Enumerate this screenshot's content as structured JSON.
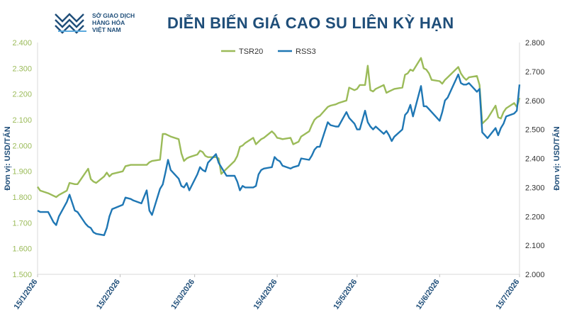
{
  "header": {
    "logo_lines": [
      "SỞ GIAO DỊCH",
      "HÀNG HÓA",
      "VIỆT NAM"
    ],
    "title": "DIỄN BIẾN GIÁ CAO SU LIÊN KỲ HẠN"
  },
  "chart_data": {
    "type": "line",
    "title": "DIỄN BIẾN GIÁ CAO SU LIÊN KỲ HẠN",
    "ylabel_left": "Đơn vị: USD/TẤN",
    "ylabel_right": "Đơn vị: USD/TẤN",
    "x_tick_labels": [
      "15/1/2026",
      "15/2/2026",
      "15/3/2026",
      "15/4/2026",
      "15/5/2026",
      "15/6/2026",
      "15/7/2026"
    ],
    "x_range": [
      "2026-01-15",
      "2026-07-15"
    ],
    "y_left_ticks": [
      "1.500",
      "1.600",
      "1.700",
      "1.800",
      "1.900",
      "2.000",
      "2.100",
      "2.200",
      "2.300",
      "2.400"
    ],
    "y_left_range": [
      1500,
      2400
    ],
    "y_right_ticks": [
      "2.000",
      "2.100",
      "2.200",
      "2.300",
      "2.400",
      "2.500",
      "2.600",
      "2.700",
      "2.800"
    ],
    "y_right_range": [
      2000,
      2800
    ],
    "grid": false,
    "legend_position": "top-center",
    "series": [
      {
        "name": "TSR20",
        "axis": "left",
        "color": "#9bbb59",
        "points": [
          [
            "2026-01-15",
            1840
          ],
          [
            "2026-01-16",
            1825
          ],
          [
            "2026-01-19",
            1815
          ],
          [
            "2026-01-21",
            1805
          ],
          [
            "2026-01-22",
            1800
          ],
          [
            "2026-01-23",
            1808
          ],
          [
            "2026-01-26",
            1825
          ],
          [
            "2026-01-27",
            1855
          ],
          [
            "2026-01-29",
            1850
          ],
          [
            "2026-01-30",
            1850
          ],
          [
            "2026-02-02",
            1895
          ],
          [
            "2026-02-03",
            1910
          ],
          [
            "2026-02-04",
            1870
          ],
          [
            "2026-02-05",
            1860
          ],
          [
            "2026-02-06",
            1855
          ],
          [
            "2026-02-09",
            1880
          ],
          [
            "2026-02-10",
            1895
          ],
          [
            "2026-02-11",
            1880
          ],
          [
            "2026-02-12",
            1890
          ],
          [
            "2026-02-16",
            1900
          ],
          [
            "2026-02-17",
            1920
          ],
          [
            "2026-02-19",
            1925
          ],
          [
            "2026-02-20",
            1925
          ],
          [
            "2026-02-23",
            1925
          ],
          [
            "2026-02-25",
            1925
          ],
          [
            "2026-02-26",
            1935
          ],
          [
            "2026-02-27",
            1940
          ],
          [
            "2026-03-02",
            1945
          ],
          [
            "2026-03-03",
            2045
          ],
          [
            "2026-03-04",
            2045
          ],
          [
            "2026-03-05",
            2040
          ],
          [
            "2026-03-06",
            2035
          ],
          [
            "2026-03-09",
            2025
          ],
          [
            "2026-03-10",
            1970
          ],
          [
            "2026-03-11",
            1940
          ],
          [
            "2026-03-12",
            1950
          ],
          [
            "2026-03-13",
            1955
          ],
          [
            "2026-03-16",
            1965
          ],
          [
            "2026-03-17",
            1980
          ],
          [
            "2026-03-18",
            1975
          ],
          [
            "2026-03-19",
            1960
          ],
          [
            "2026-03-20",
            1955
          ],
          [
            "2026-03-23",
            1955
          ],
          [
            "2026-03-24",
            1950
          ],
          [
            "2026-03-25",
            1890
          ],
          [
            "2026-03-27",
            1910
          ],
          [
            "2026-03-30",
            1940
          ],
          [
            "2026-03-31",
            1960
          ],
          [
            "2026-04-01",
            1995
          ],
          [
            "2026-04-02",
            2000
          ],
          [
            "2026-04-03",
            2010
          ],
          [
            "2026-04-06",
            2030
          ],
          [
            "2026-04-07",
            2005
          ],
          [
            "2026-04-08",
            2015
          ],
          [
            "2026-04-09",
            2025
          ],
          [
            "2026-04-10",
            2030
          ],
          [
            "2026-04-13",
            2055
          ],
          [
            "2026-04-14",
            2045
          ],
          [
            "2026-04-15",
            2030
          ],
          [
            "2026-04-16",
            2028
          ],
          [
            "2026-04-17",
            2025
          ],
          [
            "2026-04-20",
            2030
          ],
          [
            "2026-04-21",
            2005
          ],
          [
            "2026-04-23",
            2015
          ],
          [
            "2026-04-24",
            2035
          ],
          [
            "2026-04-27",
            2055
          ],
          [
            "2026-04-28",
            2080
          ],
          [
            "2026-04-29",
            2100
          ],
          [
            "2026-04-30",
            2110
          ],
          [
            "2026-05-01",
            2115
          ],
          [
            "2026-05-04",
            2150
          ],
          [
            "2026-05-05",
            2155
          ],
          [
            "2026-05-07",
            2160
          ],
          [
            "2026-05-08",
            2165
          ],
          [
            "2026-05-11",
            2175
          ],
          [
            "2026-05-12",
            2225
          ],
          [
            "2026-05-14",
            2215
          ],
          [
            "2026-05-15",
            2220
          ],
          [
            "2026-05-16",
            2235
          ],
          [
            "2026-05-18",
            2235
          ],
          [
            "2026-05-19",
            2310
          ],
          [
            "2026-05-20",
            2215
          ],
          [
            "2026-05-21",
            2210
          ],
          [
            "2026-05-22",
            2220
          ],
          [
            "2026-05-25",
            2235
          ],
          [
            "2026-05-26",
            2205
          ],
          [
            "2026-05-27",
            2210
          ],
          [
            "2026-05-28",
            2215
          ],
          [
            "2026-05-29",
            2220
          ],
          [
            "2026-06-01",
            2225
          ],
          [
            "2026-06-02",
            2275
          ],
          [
            "2026-06-03",
            2280
          ],
          [
            "2026-06-04",
            2295
          ],
          [
            "2026-06-05",
            2290
          ],
          [
            "2026-06-08",
            2340
          ],
          [
            "2026-06-09",
            2300
          ],
          [
            "2026-06-10",
            2295
          ],
          [
            "2026-06-11",
            2280
          ],
          [
            "2026-06-12",
            2255
          ],
          [
            "2026-06-15",
            2250
          ],
          [
            "2026-06-16",
            2240
          ],
          [
            "2026-06-17",
            2255
          ],
          [
            "2026-06-18",
            2265
          ],
          [
            "2026-06-22",
            2305
          ],
          [
            "2026-06-23",
            2280
          ],
          [
            "2026-06-24",
            2265
          ],
          [
            "2026-06-25",
            2255
          ],
          [
            "2026-06-26",
            2265
          ],
          [
            "2026-06-29",
            2270
          ],
          [
            "2026-06-30",
            2235
          ],
          [
            "2026-07-01",
            2085
          ],
          [
            "2026-07-02",
            2095
          ],
          [
            "2026-07-03",
            2105
          ],
          [
            "2026-07-06",
            2155
          ],
          [
            "2026-07-07",
            2110
          ],
          [
            "2026-07-08",
            2105
          ],
          [
            "2026-07-09",
            2130
          ],
          [
            "2026-07-10",
            2145
          ],
          [
            "2026-07-13",
            2165
          ],
          [
            "2026-07-14",
            2150
          ],
          [
            "2026-07-15",
            2185
          ]
        ]
      },
      {
        "name": "RSS3",
        "axis": "right",
        "color": "#1f77b4",
        "points": [
          [
            "2026-01-15",
            2220
          ],
          [
            "2026-01-16",
            2215
          ],
          [
            "2026-01-19",
            2215
          ],
          [
            "2026-01-21",
            2180
          ],
          [
            "2026-01-22",
            2170
          ],
          [
            "2026-01-23",
            2200
          ],
          [
            "2026-01-26",
            2250
          ],
          [
            "2026-01-27",
            2275
          ],
          [
            "2026-01-29",
            2220
          ],
          [
            "2026-01-30",
            2215
          ],
          [
            "2026-02-02",
            2175
          ],
          [
            "2026-02-03",
            2165
          ],
          [
            "2026-02-04",
            2160
          ],
          [
            "2026-02-05",
            2145
          ],
          [
            "2026-02-06",
            2140
          ],
          [
            "2026-02-09",
            2135
          ],
          [
            "2026-02-10",
            2160
          ],
          [
            "2026-02-11",
            2200
          ],
          [
            "2026-02-12",
            2225
          ],
          [
            "2026-02-16",
            2240
          ],
          [
            "2026-02-17",
            2265
          ],
          [
            "2026-02-19",
            2260
          ],
          [
            "2026-02-20",
            2255
          ],
          [
            "2026-02-23",
            2245
          ],
          [
            "2026-02-25",
            2290
          ],
          [
            "2026-02-26",
            2220
          ],
          [
            "2026-02-27",
            2205
          ],
          [
            "2026-03-02",
            2295
          ],
          [
            "2026-03-03",
            2310
          ],
          [
            "2026-03-04",
            2350
          ],
          [
            "2026-03-05",
            2395
          ],
          [
            "2026-03-06",
            2360
          ],
          [
            "2026-03-09",
            2330
          ],
          [
            "2026-03-10",
            2305
          ],
          [
            "2026-03-11",
            2300
          ],
          [
            "2026-03-12",
            2315
          ],
          [
            "2026-03-13",
            2290
          ],
          [
            "2026-03-16",
            2345
          ],
          [
            "2026-03-17",
            2370
          ],
          [
            "2026-03-18",
            2360
          ],
          [
            "2026-03-19",
            2355
          ],
          [
            "2026-03-20",
            2385
          ],
          [
            "2026-03-23",
            2415
          ],
          [
            "2026-03-24",
            2385
          ],
          [
            "2026-03-25",
            2370
          ],
          [
            "2026-03-27",
            2340
          ],
          [
            "2026-03-30",
            2340
          ],
          [
            "2026-03-31",
            2320
          ],
          [
            "2026-04-01",
            2290
          ],
          [
            "2026-04-02",
            2305
          ],
          [
            "2026-04-03",
            2300
          ],
          [
            "2026-04-06",
            2300
          ],
          [
            "2026-04-07",
            2305
          ],
          [
            "2026-04-08",
            2345
          ],
          [
            "2026-04-09",
            2360
          ],
          [
            "2026-04-10",
            2365
          ],
          [
            "2026-04-13",
            2370
          ],
          [
            "2026-04-14",
            2405
          ],
          [
            "2026-04-15",
            2395
          ],
          [
            "2026-04-16",
            2390
          ],
          [
            "2026-04-17",
            2375
          ],
          [
            "2026-04-20",
            2365
          ],
          [
            "2026-04-21",
            2370
          ],
          [
            "2026-04-23",
            2375
          ],
          [
            "2026-04-24",
            2400
          ],
          [
            "2026-04-27",
            2395
          ],
          [
            "2026-04-28",
            2410
          ],
          [
            "2026-04-29",
            2430
          ],
          [
            "2026-04-30",
            2440
          ],
          [
            "2026-05-01",
            2440
          ],
          [
            "2026-05-04",
            2525
          ],
          [
            "2026-05-05",
            2515
          ],
          [
            "2026-05-07",
            2510
          ],
          [
            "2026-05-08",
            2510
          ],
          [
            "2026-05-11",
            2560
          ],
          [
            "2026-05-12",
            2540
          ],
          [
            "2026-05-14",
            2520
          ],
          [
            "2026-05-15",
            2500
          ],
          [
            "2026-05-16",
            2500
          ],
          [
            "2026-05-18",
            2565
          ],
          [
            "2026-05-19",
            2525
          ],
          [
            "2026-05-20",
            2510
          ],
          [
            "2026-05-21",
            2500
          ],
          [
            "2026-05-22",
            2510
          ],
          [
            "2026-05-25",
            2485
          ],
          [
            "2026-05-26",
            2495
          ],
          [
            "2026-05-27",
            2480
          ],
          [
            "2026-05-28",
            2460
          ],
          [
            "2026-05-29",
            2475
          ],
          [
            "2026-06-01",
            2500
          ],
          [
            "2026-06-02",
            2550
          ],
          [
            "2026-06-03",
            2560
          ],
          [
            "2026-06-04",
            2585
          ],
          [
            "2026-06-05",
            2545
          ],
          [
            "2026-06-08",
            2650
          ],
          [
            "2026-06-09",
            2580
          ],
          [
            "2026-06-10",
            2580
          ],
          [
            "2026-06-11",
            2570
          ],
          [
            "2026-06-12",
            2560
          ],
          [
            "2026-06-15",
            2530
          ],
          [
            "2026-06-16",
            2560
          ],
          [
            "2026-06-17",
            2600
          ],
          [
            "2026-06-18",
            2610
          ],
          [
            "2026-06-22",
            2690
          ],
          [
            "2026-06-23",
            2660
          ],
          [
            "2026-06-24",
            2655
          ],
          [
            "2026-06-25",
            2655
          ],
          [
            "2026-06-26",
            2660
          ],
          [
            "2026-06-29",
            2630
          ],
          [
            "2026-06-30",
            2640
          ],
          [
            "2026-07-01",
            2490
          ],
          [
            "2026-07-02",
            2480
          ],
          [
            "2026-07-03",
            2470
          ],
          [
            "2026-07-06",
            2505
          ],
          [
            "2026-07-07",
            2480
          ],
          [
            "2026-07-08",
            2505
          ],
          [
            "2026-07-09",
            2520
          ],
          [
            "2026-07-10",
            2545
          ],
          [
            "2026-07-13",
            2555
          ],
          [
            "2026-07-14",
            2565
          ],
          [
            "2026-07-15",
            2655
          ]
        ]
      }
    ]
  },
  "colors": {
    "title": "#1f4e79",
    "left_axis_text": "#9bbb59",
    "right_axis_text": "#333333",
    "tsr20": "#9bbb59",
    "rss3": "#1f77b4",
    "logo": "#1f4e79"
  }
}
